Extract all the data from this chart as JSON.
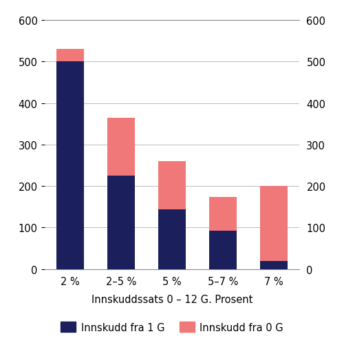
{
  "categories": [
    "2 %",
    "2–5 %",
    "5 %",
    "5–7 %",
    "7 %"
  ],
  "dark_values": [
    500,
    225,
    143,
    93,
    20
  ],
  "pink_values": [
    30,
    140,
    117,
    80,
    180
  ],
  "dark_color": "#1b1f5c",
  "pink_color": "#f07878",
  "xlabel": "Innskuddssats 0 – 12 G. Prosent",
  "ylim": [
    0,
    600
  ],
  "yticks": [
    0,
    100,
    200,
    300,
    400,
    500,
    600
  ],
  "legend_dark": "Innskudd fra 1 G",
  "legend_pink": "Innskudd fra 0 G",
  "bar_width": 0.55,
  "grid_color": "#bbbbbb",
  "background_color": "#ffffff"
}
